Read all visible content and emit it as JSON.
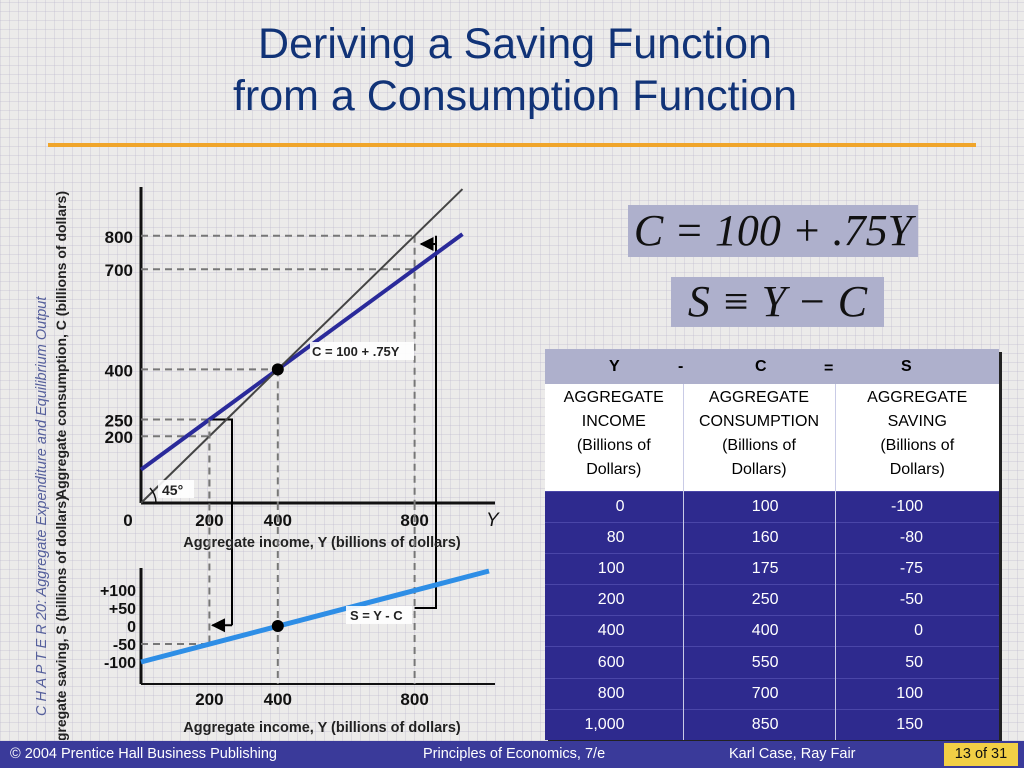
{
  "side_label": "C H A P T E R  20:  Aggregate Expenditure and Equilibrium Output",
  "title": {
    "line1": "Deriving a Saving Function",
    "line2": "from a Consumption Function"
  },
  "equations": {
    "consumption": "C = 100 + .75Y",
    "saving": "S ≡ Y − C"
  },
  "table": {
    "header_symbols": [
      "Y",
      "-",
      "C",
      "=",
      "S"
    ],
    "columns": [
      {
        "line1": "AGGREGATE",
        "line2": "INCOME",
        "line3": "(Billions of",
        "line4": "Dollars)"
      },
      {
        "line1": "AGGREGATE",
        "line2": "CONSUMPTION",
        "line3": "(Billions of",
        "line4": "Dollars)"
      },
      {
        "line1": "AGGREGATE",
        "line2": "SAVING",
        "line3": "(Billions of",
        "line4": "Dollars)"
      }
    ],
    "rows": [
      [
        "0",
        "100",
        "-100"
      ],
      [
        "80",
        "160",
        "-80"
      ],
      [
        "100",
        "175",
        "-75"
      ],
      [
        "200",
        "250",
        "-50"
      ],
      [
        "400",
        "400",
        "0"
      ],
      [
        "600",
        "550",
        "50"
      ],
      [
        "800",
        "700",
        "100"
      ],
      [
        "1,000",
        "850",
        "150"
      ]
    ]
  },
  "chart_data": [
    {
      "type": "line",
      "xlabel": "Aggregate income, Y (billions of dollars)",
      "ylabel": "Aggregate consumption, C (billions of dollars)",
      "x_axis_symbol": "Y",
      "xlim": [
        0,
        1000
      ],
      "ylim": [
        0,
        1000
      ],
      "x_ticks": [
        "0",
        "200",
        "400",
        "800"
      ],
      "y_ticks": [
        "200",
        "250",
        "400",
        "700",
        "800"
      ],
      "series": [
        {
          "name": "C = 100 + .75Y",
          "color": "#2a2a9a",
          "x": [
            0,
            1000
          ],
          "y": [
            100,
            850
          ]
        },
        {
          "name": "45°",
          "color": "#444444",
          "x": [
            0,
            1000
          ],
          "y": [
            0,
            1000
          ]
        }
      ],
      "annotations": [
        "C = 100 + .75Y",
        "45°"
      ],
      "highlighted_point": {
        "x": 400,
        "y": 400
      }
    },
    {
      "type": "line",
      "xlabel": "Aggregate income, Y (billions of dollars)",
      "ylabel": "Aggregate saving, S (billions of dollars)",
      "xlim": [
        0,
        1000
      ],
      "ylim": [
        -125,
        125
      ],
      "x_ticks": [
        "200",
        "400",
        "800"
      ],
      "y_ticks": [
        "+100",
        "+50",
        "0",
        "-50",
        "-100"
      ],
      "series": [
        {
          "name": "S = Y - C",
          "color": "#2e8ee6",
          "x": [
            0,
            1000
          ],
          "y": [
            -100,
            150
          ]
        }
      ],
      "annotations": [
        "S = Y - C"
      ],
      "highlighted_point": {
        "x": 400,
        "y": 0
      }
    }
  ],
  "footer": {
    "publisher": "© 2004 Prentice Hall Business Publishing",
    "book": "Principles of Economics, 7/e",
    "authors": "Karl Case, Ray Fair",
    "page": "13 of 31"
  }
}
